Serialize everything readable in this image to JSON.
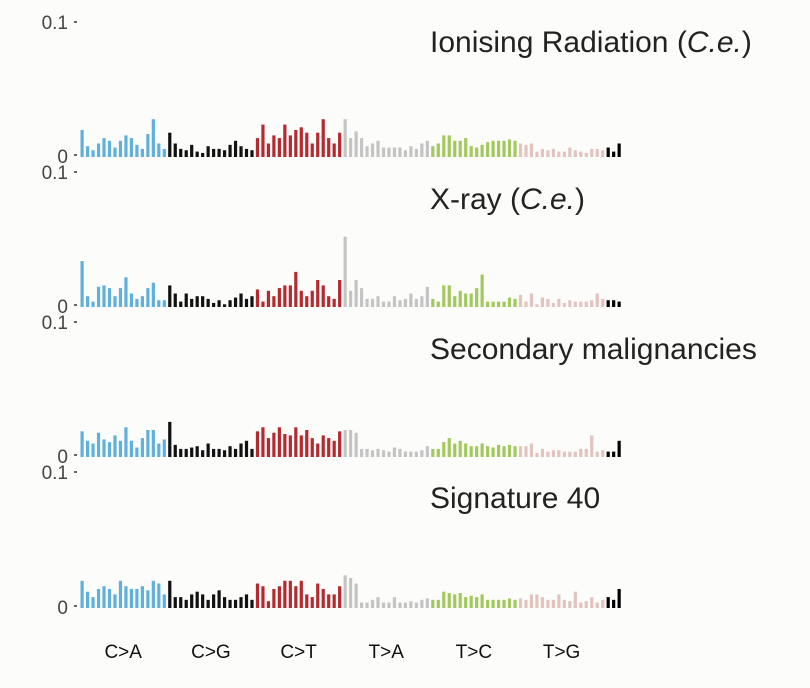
{
  "chart_data": {
    "type": "bar",
    "ylim": [
      0,
      0.1
    ],
    "yticks": [
      "0.1",
      "0"
    ],
    "categories": [
      "C>A",
      "C>G",
      "C>T",
      "T>A",
      "T>C",
      "T>G"
    ],
    "colors": [
      "#5fb0dc",
      "#111111",
      "#b52a2e",
      "#c4c4c4",
      "#a3c95e",
      "#e3c3bd"
    ],
    "panels": [
      {
        "title": "Ionising Radiation (",
        "title_italic": "C.e.",
        "title_end": ")",
        "values": [
          0.02,
          0.008,
          0.005,
          0.01,
          0.014,
          0.012,
          0.007,
          0.012,
          0.016,
          0.014,
          0.009,
          0.006,
          0.017,
          0.028,
          0.01,
          0.006,
          0.018,
          0.01,
          0.006,
          0.005,
          0.009,
          0.004,
          0.003,
          0.008,
          0.006,
          0.006,
          0.005,
          0.009,
          0.012,
          0.008,
          0.006,
          0.005,
          0.014,
          0.024,
          0.01,
          0.016,
          0.014,
          0.024,
          0.016,
          0.02,
          0.022,
          0.018,
          0.01,
          0.018,
          0.028,
          0.014,
          0.01,
          0.018,
          0.028,
          0.014,
          0.019,
          0.014,
          0.008,
          0.01,
          0.012,
          0.007,
          0.007,
          0.007,
          0.007,
          0.005,
          0.008,
          0.006,
          0.01,
          0.012,
          0.008,
          0.01,
          0.016,
          0.016,
          0.012,
          0.012,
          0.014,
          0.008,
          0.007,
          0.009,
          0.011,
          0.012,
          0.012,
          0.012,
          0.013,
          0.012,
          0.01,
          0.009,
          0.01,
          0.004,
          0.006,
          0.005,
          0.006,
          0.004,
          0.004,
          0.007,
          0.005,
          0.004,
          0.003,
          0.006,
          0.006,
          0.005,
          0.007,
          0.004,
          0.01
        ]
      },
      {
        "title": "X-ray (",
        "title_italic": "C.e.",
        "title_end": ")",
        "values": [
          0.034,
          0.008,
          0.004,
          0.015,
          0.016,
          0.014,
          0.008,
          0.014,
          0.022,
          0.01,
          0.006,
          0.008,
          0.014,
          0.018,
          0.005,
          0.005,
          0.016,
          0.01,
          0.004,
          0.01,
          0.006,
          0.008,
          0.008,
          0.006,
          0.003,
          0.005,
          0.002,
          0.005,
          0.007,
          0.01,
          0.006,
          0.008,
          0.013,
          0.004,
          0.012,
          0.008,
          0.014,
          0.016,
          0.016,
          0.026,
          0.012,
          0.008,
          0.012,
          0.02,
          0.016,
          0.008,
          0.006,
          0.02,
          0.052,
          0.012,
          0.02,
          0.014,
          0.006,
          0.006,
          0.008,
          0.004,
          0.004,
          0.008,
          0.005,
          0.006,
          0.01,
          0.006,
          0.008,
          0.015,
          0.006,
          0.004,
          0.016,
          0.016,
          0.008,
          0.012,
          0.01,
          0.01,
          0.014,
          0.024,
          0.004,
          0.004,
          0.004,
          0.004,
          0.007,
          0.006,
          0.009,
          0.004,
          0.01,
          0.002,
          0.007,
          0.006,
          0.003,
          0.006,
          0.003,
          0.005,
          0.004,
          0.004,
          0.004,
          0.005,
          0.01,
          0.006,
          0.005,
          0.005,
          0.004
        ]
      },
      {
        "title": "Secondary malignancies",
        "title_italic": "",
        "title_end": "",
        "values": [
          0.019,
          0.012,
          0.01,
          0.018,
          0.013,
          0.011,
          0.016,
          0.012,
          0.022,
          0.012,
          0.007,
          0.014,
          0.02,
          0.02,
          0.01,
          0.013,
          0.026,
          0.009,
          0.006,
          0.006,
          0.007,
          0.008,
          0.005,
          0.01,
          0.006,
          0.006,
          0.005,
          0.008,
          0.006,
          0.01,
          0.012,
          0.006,
          0.019,
          0.022,
          0.014,
          0.018,
          0.022,
          0.017,
          0.016,
          0.022,
          0.016,
          0.02,
          0.014,
          0.01,
          0.016,
          0.014,
          0.012,
          0.019,
          0.02,
          0.02,
          0.018,
          0.006,
          0.006,
          0.005,
          0.006,
          0.005,
          0.004,
          0.007,
          0.006,
          0.004,
          0.004,
          0.004,
          0.005,
          0.008,
          0.006,
          0.006,
          0.011,
          0.014,
          0.01,
          0.012,
          0.01,
          0.008,
          0.008,
          0.01,
          0.008,
          0.007,
          0.009,
          0.008,
          0.009,
          0.008,
          0.008,
          0.008,
          0.01,
          0.003,
          0.006,
          0.004,
          0.005,
          0.005,
          0.004,
          0.004,
          0.004,
          0.006,
          0.006,
          0.016,
          0.004,
          0.005,
          0.004,
          0.004,
          0.012
        ]
      },
      {
        "title": "Signature 40",
        "title_italic": "",
        "title_end": "",
        "values": [
          0.02,
          0.012,
          0.008,
          0.014,
          0.016,
          0.014,
          0.01,
          0.02,
          0.016,
          0.014,
          0.014,
          0.016,
          0.013,
          0.02,
          0.018,
          0.01,
          0.02,
          0.008,
          0.008,
          0.006,
          0.01,
          0.012,
          0.01,
          0.006,
          0.01,
          0.013,
          0.008,
          0.006,
          0.006,
          0.008,
          0.01,
          0.006,
          0.018,
          0.016,
          0.005,
          0.014,
          0.016,
          0.02,
          0.02,
          0.016,
          0.02,
          0.01,
          0.008,
          0.018,
          0.014,
          0.01,
          0.01,
          0.016,
          0.024,
          0.022,
          0.018,
          0.004,
          0.004,
          0.006,
          0.008,
          0.004,
          0.004,
          0.008,
          0.004,
          0.004,
          0.005,
          0.004,
          0.006,
          0.007,
          0.006,
          0.006,
          0.012,
          0.011,
          0.01,
          0.011,
          0.008,
          0.009,
          0.008,
          0.01,
          0.006,
          0.006,
          0.006,
          0.006,
          0.007,
          0.006,
          0.007,
          0.006,
          0.01,
          0.01,
          0.008,
          0.006,
          0.006,
          0.01,
          0.006,
          0.005,
          0.012,
          0.004,
          0.005,
          0.008,
          0.004,
          0.006,
          0.008,
          0.006,
          0.014
        ]
      }
    ]
  }
}
